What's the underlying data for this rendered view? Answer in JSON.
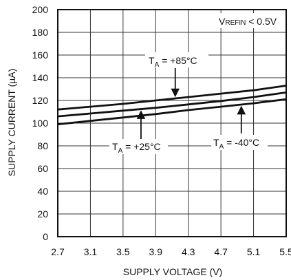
{
  "chart_data": {
    "type": "line",
    "xlabel": "SUPPLY VOLTAGE (V)",
    "ylabel": "SUPPLY CURRENT (µA)",
    "xlim": [
      2.7,
      5.5
    ],
    "ylim": [
      0,
      200
    ],
    "x_ticks": [
      "2.7",
      "3.1",
      "3.5",
      "3.9",
      "4.3",
      "4.7",
      "5.1",
      "5.5"
    ],
    "y_ticks": [
      "0",
      "20",
      "40",
      "60",
      "80",
      "100",
      "120",
      "140",
      "160",
      "180",
      "200"
    ],
    "grid": true,
    "condition": {
      "prefix": "V",
      "sub": "REFIN",
      "suffix": " < 0.5V"
    },
    "series": [
      {
        "name": "T_A = +85°C",
        "x": [
          2.7,
          3.1,
          3.5,
          3.9,
          4.3,
          4.7,
          5.1,
          5.5
        ],
        "y": [
          112,
          114.5,
          117,
          120,
          123,
          126,
          129,
          133
        ]
      },
      {
        "name": "T_A = +25°C",
        "x": [
          2.7,
          3.1,
          3.5,
          3.9,
          4.3,
          4.7,
          5.1,
          5.5
        ],
        "y": [
          106,
          108.5,
          111,
          113.5,
          116.5,
          119.5,
          123,
          127
        ]
      },
      {
        "name": "T_A = -40°C",
        "x": [
          2.7,
          3.1,
          3.5,
          3.9,
          4.3,
          4.7,
          5.1,
          5.5
        ],
        "y": [
          99,
          102,
          105,
          108,
          111.5,
          114.5,
          117.5,
          121
        ]
      }
    ],
    "annotations": [
      {
        "prefix": "T",
        "sub": "A",
        "suffix": " = +85°C"
      },
      {
        "prefix": "T",
        "sub": "A",
        "suffix": " = +25°C"
      },
      {
        "prefix": "T",
        "sub": "A",
        "suffix": " = -40°C"
      }
    ]
  }
}
